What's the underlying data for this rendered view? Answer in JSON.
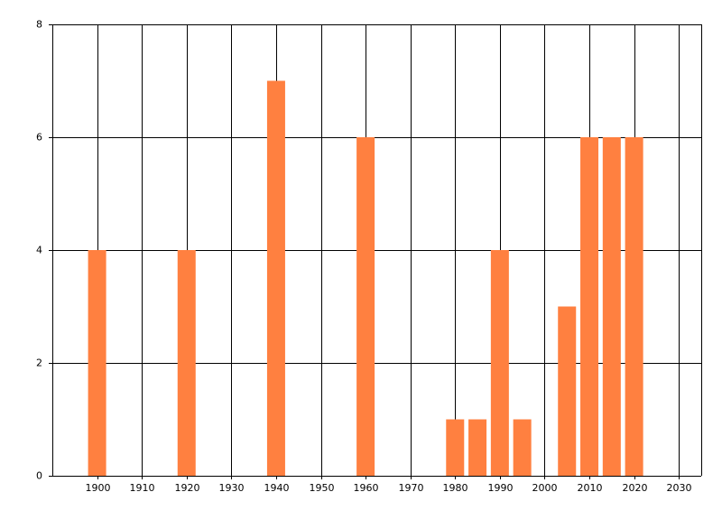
{
  "chart_data": {
    "type": "bar",
    "x": [
      1900,
      1920,
      1940,
      1960,
      1980,
      1985,
      1990,
      1995,
      2005,
      2010,
      2015,
      2020
    ],
    "values": [
      4,
      4,
      7,
      6,
      1,
      1,
      4,
      1,
      3,
      6,
      6,
      6
    ],
    "color": "#ff8040",
    "xlim": [
      1890,
      2035
    ],
    "xticks": [
      1900,
      1910,
      1920,
      1930,
      1940,
      1950,
      1960,
      1970,
      1980,
      1990,
      2000,
      2010,
      2020,
      2030
    ],
    "ylim": [
      0,
      8
    ],
    "yticks": [
      0,
      2,
      4,
      6,
      8
    ],
    "grid": true
  }
}
